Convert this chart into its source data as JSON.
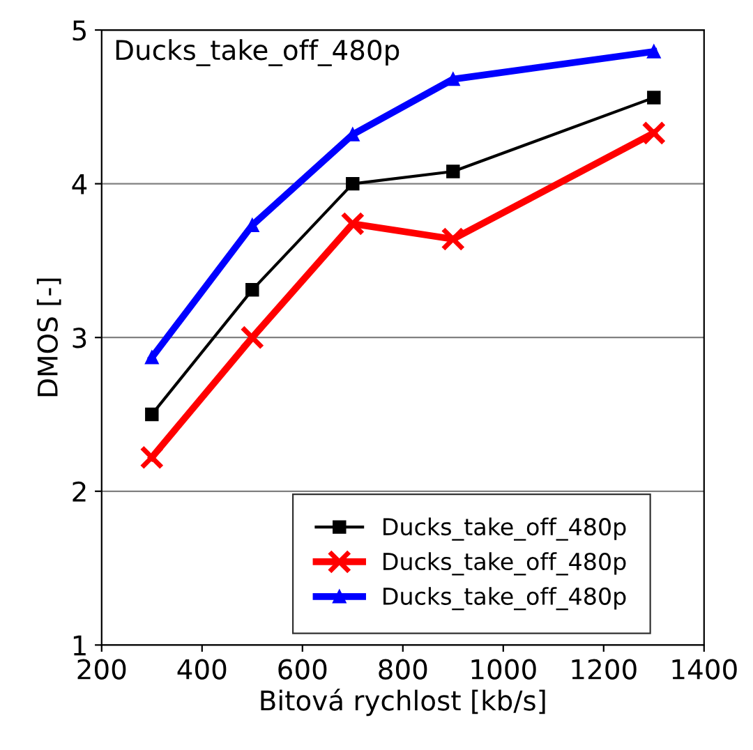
{
  "chart_data": {
    "type": "line",
    "title": "Ducks_take_off_480p",
    "xlabel": "Bitová rychlost [kb/s]",
    "ylabel": "DMOS [-]",
    "xlim": [
      200,
      1400
    ],
    "xticks": [
      200,
      400,
      600,
      800,
      1000,
      1200,
      1400
    ],
    "ylim": [
      1,
      5
    ],
    "yticks": [
      1,
      2,
      3,
      4,
      5
    ],
    "grid": "y",
    "legend": "bottom right",
    "series": [
      {
        "name": "Ducks_take_off_480p",
        "color": "#000000",
        "marker": "square",
        "x": [
          300,
          500,
          700,
          900,
          1300
        ],
        "values": [
          2.5,
          3.31,
          4.0,
          4.08,
          4.56
        ]
      },
      {
        "name": "Ducks_take_off_480p",
        "color": "#ff0000",
        "marker": "cross",
        "x": [
          300,
          500,
          700,
          900,
          1300
        ],
        "values": [
          2.22,
          3.0,
          3.74,
          3.64,
          4.33
        ]
      },
      {
        "name": "Ducks_take_off_480p",
        "color": "#0000ff",
        "marker": "triangle",
        "x": [
          300,
          500,
          700,
          900,
          1300
        ],
        "values": [
          2.87,
          3.73,
          4.32,
          4.68,
          4.86
        ]
      }
    ]
  }
}
